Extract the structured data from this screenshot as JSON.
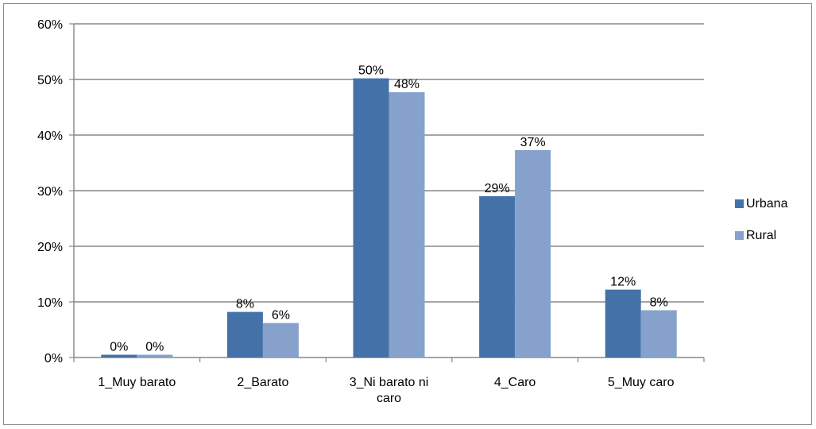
{
  "chart_data": {
    "type": "bar",
    "categories": [
      "1_Muy barato",
      "2_Barato",
      "3_Ni barato ni caro",
      "4_Caro",
      "5_Muy caro"
    ],
    "category_label_lines": [
      [
        "1_Muy barato"
      ],
      [
        "2_Barato"
      ],
      [
        "3_Ni barato ni",
        "caro"
      ],
      [
        "4_Caro"
      ],
      [
        "5_Muy caro"
      ]
    ],
    "series": [
      {
        "name": "Urbana",
        "color": "#4472a8",
        "values": [
          0.5,
          8.2,
          50.2,
          29.0,
          12.2
        ],
        "labels": [
          "0%",
          "8%",
          "50%",
          "29%",
          "12%"
        ]
      },
      {
        "name": "Rural",
        "color": "#86a2cc",
        "values": [
          0.5,
          6.2,
          47.7,
          37.3,
          8.5
        ],
        "labels": [
          "0%",
          "6%",
          "48%",
          "37%",
          "8%"
        ]
      }
    ],
    "ylim": [
      0,
      60
    ],
    "yticks": [
      0,
      10,
      20,
      30,
      40,
      50,
      60
    ],
    "ytick_labels": [
      "0%",
      "10%",
      "20%",
      "30%",
      "40%",
      "50%",
      "60%"
    ],
    "title": "",
    "xlabel": "",
    "ylabel": "",
    "grid": true,
    "legend_position": "right"
  }
}
